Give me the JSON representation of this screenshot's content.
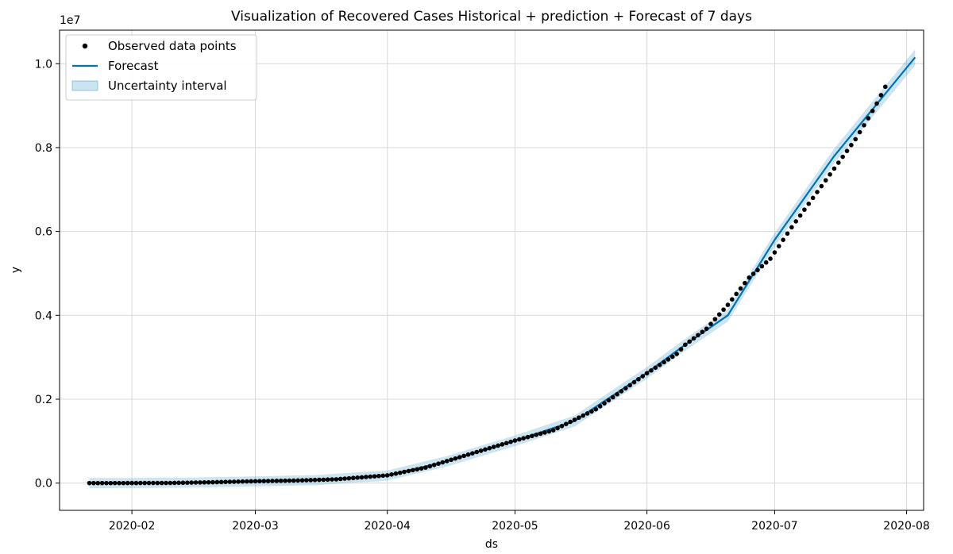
{
  "chart_data": {
    "type": "line",
    "title": "Visualization of Recovered Cases Historical + prediction + Forecast of 7 days",
    "xlabel": "ds",
    "ylabel": "y",
    "y_offset_label": "1e7",
    "y_scale": 10000000,
    "xlim": [
      "2020-01-15",
      "2020-08-05"
    ],
    "ylim": [
      -0.065,
      1.08
    ],
    "grid": true,
    "legend_position": "upper-left",
    "x_ticks": [
      {
        "date": "2020-02-01",
        "label": "2020-02"
      },
      {
        "date": "2020-03-01",
        "label": "2020-03"
      },
      {
        "date": "2020-04-01",
        "label": "2020-04"
      },
      {
        "date": "2020-05-01",
        "label": "2020-05"
      },
      {
        "date": "2020-06-01",
        "label": "2020-06"
      },
      {
        "date": "2020-07-01",
        "label": "2020-07"
      },
      {
        "date": "2020-08-01",
        "label": "2020-08"
      }
    ],
    "y_ticks": [
      {
        "value": 0.0,
        "label": "0.0"
      },
      {
        "value": 0.2,
        "label": "0.2"
      },
      {
        "value": 0.4,
        "label": "0.4"
      },
      {
        "value": 0.6,
        "label": "0.6"
      },
      {
        "value": 0.8,
        "label": "0.8"
      },
      {
        "value": 1.0,
        "label": "1.0"
      }
    ],
    "legend": [
      {
        "label": "Observed data points",
        "kind": "dot",
        "color": "#000000"
      },
      {
        "label": "Forecast",
        "kind": "line",
        "color": "#0072B2"
      },
      {
        "label": "Uncertainty interval",
        "kind": "band",
        "color": "#0072B2"
      }
    ],
    "series": [
      {
        "name": "Observed data points",
        "kind": "scatter",
        "points": [
          [
            "2020-01-22",
            0.0
          ],
          [
            "2020-02-01",
            0.0001
          ],
          [
            "2020-02-10",
            0.0003
          ],
          [
            "2020-02-20",
            0.002
          ],
          [
            "2020-03-01",
            0.0045
          ],
          [
            "2020-03-10",
            0.006
          ],
          [
            "2020-03-20",
            0.009
          ],
          [
            "2020-04-01",
            0.0185
          ],
          [
            "2020-04-10",
            0.037
          ],
          [
            "2020-04-20",
            0.068
          ],
          [
            "2020-05-01",
            0.1015
          ],
          [
            "2020-05-10",
            0.126
          ],
          [
            "2020-05-20",
            0.176
          ],
          [
            "2020-06-01",
            0.262
          ],
          [
            "2020-06-08",
            0.308
          ],
          [
            "2020-06-10",
            0.33
          ],
          [
            "2020-06-15",
            0.368
          ],
          [
            "2020-06-20",
            0.425
          ],
          [
            "2020-06-25",
            0.49
          ],
          [
            "2020-06-30",
            0.535
          ],
          [
            "2020-07-05",
            0.61
          ],
          [
            "2020-07-10",
            0.68
          ],
          [
            "2020-07-15",
            0.75
          ],
          [
            "2020-07-20",
            0.82
          ],
          [
            "2020-07-23",
            0.87
          ],
          [
            "2020-07-25",
            0.905
          ],
          [
            "2020-07-27",
            0.945
          ]
        ]
      },
      {
        "name": "Forecast",
        "kind": "line",
        "color": "#0072B2",
        "points": [
          [
            "2020-01-22",
            0.0
          ],
          [
            "2020-02-01",
            0.0002
          ],
          [
            "2020-02-15",
            0.0012
          ],
          [
            "2020-03-01",
            0.004
          ],
          [
            "2020-03-15",
            0.007
          ],
          [
            "2020-04-01",
            0.018
          ],
          [
            "2020-04-15",
            0.052
          ],
          [
            "2020-05-01",
            0.101
          ],
          [
            "2020-05-15",
            0.148
          ],
          [
            "2020-06-01",
            0.263
          ],
          [
            "2020-06-10",
            0.33
          ],
          [
            "2020-06-20",
            0.4
          ],
          [
            "2020-07-01",
            0.58
          ],
          [
            "2020-07-15",
            0.78
          ],
          [
            "2020-08-03",
            1.015
          ]
        ]
      },
      {
        "name": "Uncertainty interval",
        "kind": "band",
        "color": "#0072B2",
        "half_width": 0.012
      }
    ]
  }
}
